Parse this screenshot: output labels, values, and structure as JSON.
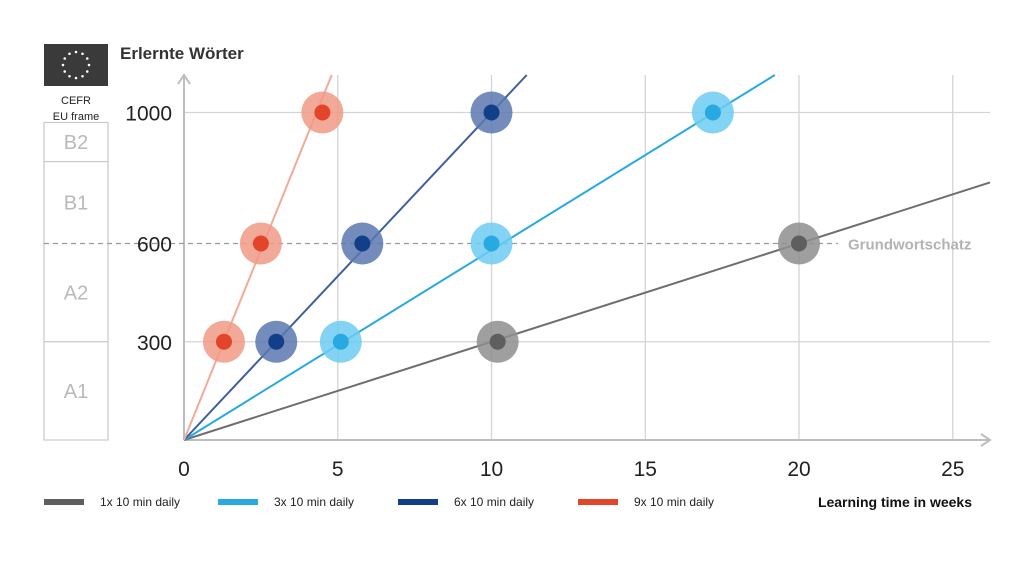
{
  "chart_data": {
    "type": "line",
    "title": "Erlernte Wörter",
    "xlabel": "Learning time in weeks",
    "ylabel": "",
    "xlim": [
      0,
      26
    ],
    "ylim": [
      0,
      1100
    ],
    "xticks": [
      0,
      5,
      10,
      15,
      20,
      25
    ],
    "yticks": [
      300,
      600,
      1000
    ],
    "grid": true,
    "legend_position": "bottom",
    "reference_line": {
      "y": 600,
      "label": "Grundwortschatz",
      "style": "dashed"
    },
    "cefr": {
      "header": [
        "CEFR",
        "EU frame"
      ],
      "bands": [
        {
          "label": "A1",
          "from": 0,
          "to": 300
        },
        {
          "label": "A2",
          "from": 300,
          "to": 600
        },
        {
          "label": "B1",
          "from": 600,
          "to": 850
        },
        {
          "label": "B2",
          "from": 850,
          "to": 1000
        }
      ]
    },
    "series": [
      {
        "name": "1x 10 min daily",
        "color": "#5e5e5e",
        "halo": "#8e8e8e",
        "line_color": "#6e6e6e",
        "slope": 30,
        "points": [
          [
            10.2,
            300
          ],
          [
            20,
            600
          ]
        ]
      },
      {
        "name": "3x 10 min daily",
        "color": "#29a9e1",
        "halo": "#6ccbf2",
        "line_color": "#29a9e1",
        "slope": 58,
        "points": [
          [
            5.1,
            300
          ],
          [
            10,
            600
          ],
          [
            17.2,
            1000
          ]
        ]
      },
      {
        "name": "6x 10 min daily",
        "color": "#133f8a",
        "halo": "#5a78b0",
        "line_color": "#3e5f9c",
        "slope": 100,
        "points": [
          [
            3,
            300
          ],
          [
            5.8,
            600
          ],
          [
            10,
            1000
          ]
        ]
      },
      {
        "name": "9x 10 min daily",
        "color": "#e2452a",
        "halo": "#f09a85",
        "line_color": "#f2ab98",
        "slope": 232,
        "points": [
          [
            1.3,
            300
          ],
          [
            2.5,
            600
          ],
          [
            4.5,
            1000
          ]
        ]
      }
    ]
  }
}
